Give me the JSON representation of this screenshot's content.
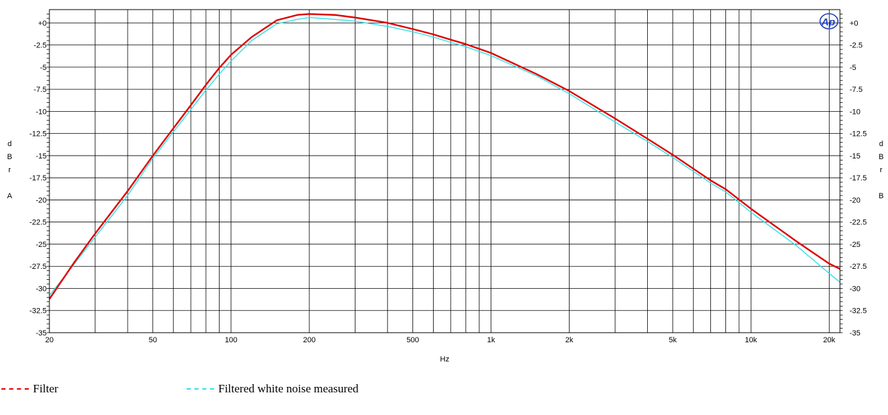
{
  "chart_data": {
    "type": "line",
    "xlabel": "Hz",
    "x_scale": "log",
    "xlim": [
      20,
      22000
    ],
    "ylim": [
      -35,
      1.5
    ],
    "y_left_label": [
      "d",
      "B",
      "r",
      "",
      "A"
    ],
    "y_right_label": [
      "d",
      "B",
      "r",
      "",
      "B"
    ],
    "x_ticks": [
      {
        "value": 20,
        "label": "20"
      },
      {
        "value": 50,
        "label": "50"
      },
      {
        "value": 100,
        "label": "100"
      },
      {
        "value": 200,
        "label": "200"
      },
      {
        "value": 500,
        "label": "500"
      },
      {
        "value": 1000,
        "label": "1k"
      },
      {
        "value": 2000,
        "label": "2k"
      },
      {
        "value": 5000,
        "label": "5k"
      },
      {
        "value": 10000,
        "label": "10k"
      },
      {
        "value": 20000,
        "label": "20k"
      }
    ],
    "y_ticks": [
      {
        "value": 0,
        "label": "+0"
      },
      {
        "value": -2.5,
        "label": "-2.5"
      },
      {
        "value": -5,
        "label": "-5"
      },
      {
        "value": -7.5,
        "label": "-7.5"
      },
      {
        "value": -10,
        "label": "-10"
      },
      {
        "value": -12.5,
        "label": "-12.5"
      },
      {
        "value": -15,
        "label": "-15"
      },
      {
        "value": -17.5,
        "label": "-17.5"
      },
      {
        "value": -20,
        "label": "-20"
      },
      {
        "value": -22.5,
        "label": "-22.5"
      },
      {
        "value": -25,
        "label": "-25"
      },
      {
        "value": -27.5,
        "label": "-27.5"
      },
      {
        "value": -30,
        "label": "-30"
      },
      {
        "value": -32.5,
        "label": "-32.5"
      },
      {
        "value": -35,
        "label": "-35"
      }
    ],
    "grid": true,
    "logo_text": "Ap",
    "series": [
      {
        "name": "Filter",
        "color": "#e00000",
        "points": [
          [
            20,
            -31.2
          ],
          [
            25,
            -27
          ],
          [
            30,
            -23.8
          ],
          [
            40,
            -19
          ],
          [
            50,
            -15
          ],
          [
            60,
            -11.9
          ],
          [
            70,
            -9.3
          ],
          [
            80,
            -7
          ],
          [
            90,
            -5.1
          ],
          [
            100,
            -3.6
          ],
          [
            120,
            -1.6
          ],
          [
            150,
            0.3
          ],
          [
            180,
            0.9
          ],
          [
            200,
            1
          ],
          [
            250,
            0.9
          ],
          [
            300,
            0.6
          ],
          [
            400,
            0
          ],
          [
            500,
            -0.7
          ],
          [
            600,
            -1.3
          ],
          [
            700,
            -1.9
          ],
          [
            800,
            -2.4
          ],
          [
            1000,
            -3.4
          ],
          [
            1500,
            -5.8
          ],
          [
            2000,
            -7.7
          ],
          [
            3000,
            -10.8
          ],
          [
            4000,
            -13.1
          ],
          [
            5000,
            -14.9
          ],
          [
            7000,
            -17.8
          ],
          [
            8000,
            -18.8
          ],
          [
            10000,
            -21
          ],
          [
            15000,
            -24.7
          ],
          [
            20000,
            -27.2
          ],
          [
            22000,
            -27.8
          ]
        ]
      },
      {
        "name": "Filtered white noise measured",
        "color": "#33e0e8",
        "points": [
          [
            20,
            -30.8
          ],
          [
            25,
            -27.2
          ],
          [
            30,
            -24.2
          ],
          [
            40,
            -19.5
          ],
          [
            50,
            -15.3
          ],
          [
            60,
            -12.3
          ],
          [
            70,
            -9.8
          ],
          [
            80,
            -7.6
          ],
          [
            90,
            -5.8
          ],
          [
            100,
            -4.3
          ],
          [
            120,
            -2
          ],
          [
            150,
            -0.1
          ],
          [
            180,
            0.4
          ],
          [
            200,
            0.6
          ],
          [
            250,
            0.4
          ],
          [
            300,
            0.2
          ],
          [
            400,
            -0.4
          ],
          [
            500,
            -1
          ],
          [
            600,
            -1.6
          ],
          [
            700,
            -2.2
          ],
          [
            800,
            -2.7
          ],
          [
            1000,
            -3.7
          ],
          [
            1500,
            -6
          ],
          [
            2000,
            -8
          ],
          [
            3000,
            -11.2
          ],
          [
            4000,
            -13.4
          ],
          [
            5000,
            -15.2
          ],
          [
            7000,
            -18.1
          ],
          [
            8000,
            -19.1
          ],
          [
            10000,
            -21.4
          ],
          [
            15000,
            -25.2
          ],
          [
            20000,
            -28.3
          ],
          [
            22000,
            -29.3
          ]
        ]
      }
    ]
  },
  "legend": {
    "filter_label": "Filter",
    "noise_label": "Filtered white noise measured"
  }
}
